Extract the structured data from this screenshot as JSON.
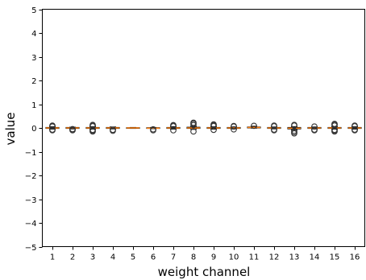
{
  "chart_data": {
    "type": "box",
    "xlabel": "weight channel",
    "ylabel": "value",
    "ylim": [
      -5,
      5
    ],
    "yticks": [
      -5,
      -4,
      -3,
      -2,
      -1,
      0,
      1,
      2,
      3,
      4,
      5
    ],
    "categories": [
      "1",
      "2",
      "3",
      "4",
      "5",
      "6",
      "7",
      "8",
      "9",
      "10",
      "11",
      "12",
      "13",
      "14",
      "15",
      "16"
    ],
    "median_color": "#ff7f0e",
    "box_color": "#000000",
    "flier_color": "#333333",
    "boxes": [
      {
        "q1": -0.02,
        "median": 0.0,
        "q3": 0.02,
        "whisker_low": -0.05,
        "whisker_high": 0.05,
        "fliers": [
          0.06,
          0.08,
          0.1,
          -0.07,
          -0.1
        ]
      },
      {
        "q1": -0.02,
        "median": 0.0,
        "q3": 0.02,
        "whisker_low": -0.04,
        "whisker_high": 0.03,
        "fliers": [
          -0.05,
          -0.07,
          -0.1
        ]
      },
      {
        "q1": -0.02,
        "median": 0.0,
        "q3": 0.02,
        "whisker_low": -0.05,
        "whisker_high": 0.05,
        "fliers": [
          0.07,
          0.1,
          0.13,
          -0.08,
          -0.12,
          -0.15
        ]
      },
      {
        "q1": -0.02,
        "median": 0.0,
        "q3": 0.02,
        "whisker_low": -0.04,
        "whisker_high": 0.04,
        "fliers": [
          -0.08,
          -0.12
        ]
      },
      {
        "q1": -0.01,
        "median": 0.0,
        "q3": 0.01,
        "whisker_low": -0.02,
        "whisker_high": 0.02,
        "fliers": []
      },
      {
        "q1": -0.02,
        "median": -0.01,
        "q3": 0.01,
        "whisker_low": -0.03,
        "whisker_high": 0.02,
        "fliers": [
          -0.06,
          -0.1
        ]
      },
      {
        "q1": -0.02,
        "median": 0.0,
        "q3": 0.02,
        "whisker_low": -0.05,
        "whisker_high": 0.05,
        "fliers": [
          0.07,
          0.1,
          0.12,
          -0.1
        ]
      },
      {
        "q1": -0.02,
        "median": 0.0,
        "q3": 0.03,
        "whisker_low": -0.06,
        "whisker_high": 0.06,
        "fliers": [
          0.12,
          0.18,
          0.22,
          -0.15
        ]
      },
      {
        "q1": -0.02,
        "median": 0.0,
        "q3": 0.02,
        "whisker_low": -0.05,
        "whisker_high": 0.05,
        "fliers": [
          0.08,
          0.12,
          0.15,
          -0.08
        ]
      },
      {
        "q1": -0.02,
        "median": 0.0,
        "q3": 0.02,
        "whisker_low": -0.04,
        "whisker_high": 0.04,
        "fliers": [
          0.06,
          0.08,
          -0.06
        ]
      },
      {
        "q1": 0.0,
        "median": 0.02,
        "q3": 0.04,
        "whisker_low": -0.01,
        "whisker_high": 0.07,
        "fliers": [
          0.09
        ]
      },
      {
        "q1": -0.02,
        "median": 0.0,
        "q3": 0.02,
        "whisker_low": -0.04,
        "whisker_high": 0.04,
        "fliers": [
          0.07,
          0.1,
          -0.07,
          -0.1
        ]
      },
      {
        "q1": -0.04,
        "median": -0.01,
        "q3": 0.02,
        "whisker_low": -0.08,
        "whisker_high": 0.05,
        "fliers": [
          0.1,
          0.13,
          -0.12,
          -0.18,
          -0.23
        ]
      },
      {
        "q1": -0.02,
        "median": 0.0,
        "q3": 0.02,
        "whisker_low": -0.04,
        "whisker_high": 0.04,
        "fliers": [
          0.06,
          -0.07,
          -0.1
        ]
      },
      {
        "q1": -0.02,
        "median": 0.0,
        "q3": 0.02,
        "whisker_low": -0.05,
        "whisker_high": 0.05,
        "fliers": [
          0.1,
          0.14,
          0.17,
          -0.08,
          -0.12,
          -0.15
        ]
      },
      {
        "q1": -0.02,
        "median": 0.0,
        "q3": 0.02,
        "whisker_low": -0.05,
        "whisker_high": 0.05,
        "fliers": [
          0.07,
          0.1,
          -0.07,
          -0.1
        ]
      }
    ]
  }
}
